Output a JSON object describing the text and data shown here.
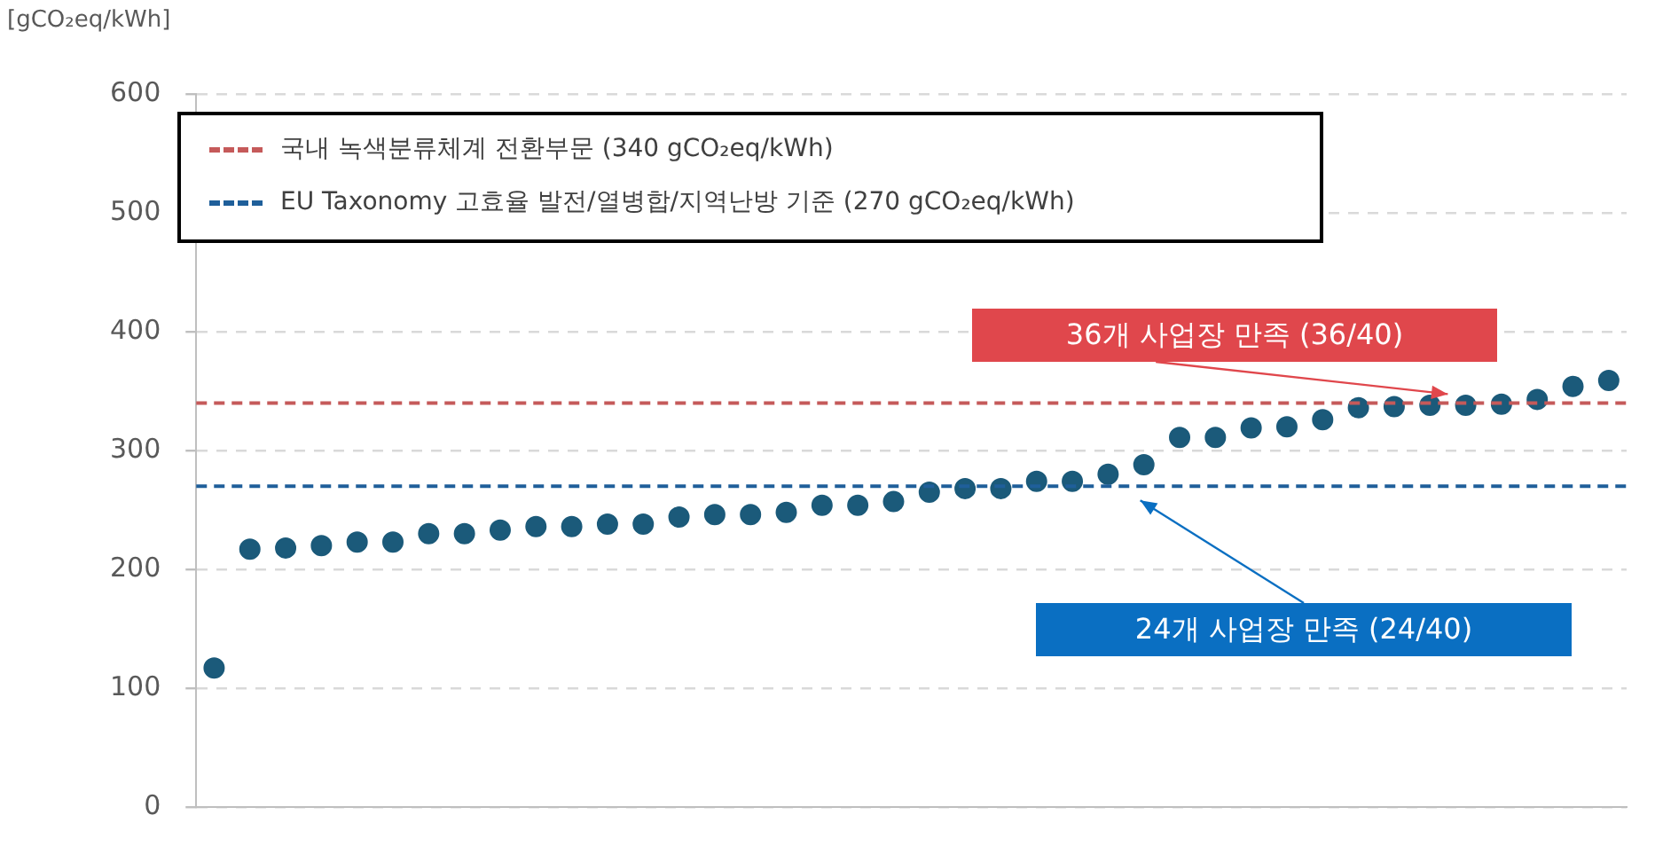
{
  "chart_data": {
    "type": "scatter",
    "ylabel": "[gCO₂eq/kWh]",
    "categories": [
      null,
      null,
      null,
      null,
      null,
      null,
      null,
      null,
      null,
      null,
      null,
      null,
      null,
      null,
      null,
      null,
      null,
      null,
      null,
      null,
      null,
      null,
      null,
      null,
      null,
      null,
      null,
      null,
      null,
      null,
      null,
      null,
      null,
      null,
      null,
      null,
      null,
      null,
      null,
      null
    ],
    "series": [
      {
        "color": "#1b5a7a",
        "values": [
          117,
          217,
          218,
          220,
          223,
          223,
          230,
          230,
          233,
          236,
          236,
          238,
          238,
          244,
          246,
          246,
          248,
          254,
          254,
          257,
          265,
          268,
          268,
          274,
          274,
          280,
          288,
          311,
          311,
          319,
          320,
          326,
          336,
          337,
          338,
          338,
          339,
          343,
          354,
          359
        ]
      }
    ],
    "ylim": [
      0,
      600
    ],
    "yticks": [
      0,
      100,
      200,
      300,
      400,
      500,
      600
    ],
    "grid": "y",
    "marker": "circle",
    "legend": "top left",
    "ref_lines": [
      {
        "axis": "y",
        "value": 340,
        "label": "국내 녹색분류체계 전환부문 (340 gCO₂eq/kWh)",
        "color": "#c55a5a",
        "line_style": "dashed"
      },
      {
        "axis": "y",
        "value": 270,
        "label": "EU Taxonomy 고효율 발전/열병합/지역난방 기준 (270 gCO₂eq/kWh)",
        "color": "#1f5f9a",
        "line_style": "dashed"
      }
    ],
    "annotations": [
      "36개 사업장 만족 (36/40)",
      "24개 사업장 만족 (24/40)"
    ]
  }
}
